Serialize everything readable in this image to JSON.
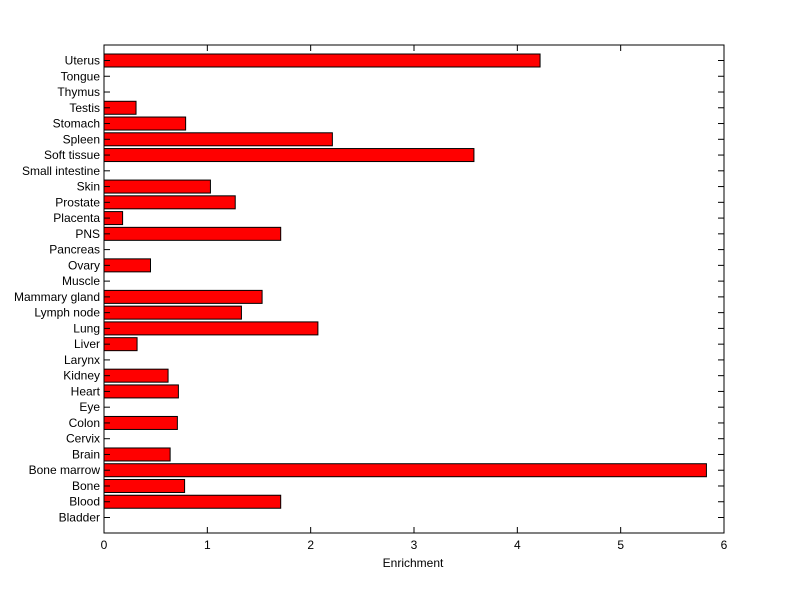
{
  "chart_data": {
    "type": "bar",
    "orientation": "horizontal",
    "xlabel": "Enrichment",
    "ylabel": "",
    "title": "",
    "xlim": [
      0,
      6
    ],
    "xticks": [
      "0",
      "1",
      "2",
      "3",
      "4",
      "5",
      "6"
    ],
    "grid": false,
    "bar_color": "#ff0000",
    "categories": [
      "Uterus",
      "Tongue",
      "Thymus",
      "Testis",
      "Stomach",
      "Spleen",
      "Soft tissue",
      "Small intestine",
      "Skin",
      "Prostate",
      "Placenta",
      "PNS",
      "Pancreas",
      "Ovary",
      "Muscle",
      "Mammary gland",
      "Lymph node",
      "Lung",
      "Liver",
      "Larynx",
      "Kidney",
      "Heart",
      "Eye",
      "Colon",
      "Cervix",
      "Brain",
      "Bone marrow",
      "Bone",
      "Blood",
      "Bladder"
    ],
    "values": [
      4.22,
      0,
      0,
      0.31,
      0.79,
      2.21,
      3.58,
      0,
      1.03,
      1.27,
      0.18,
      1.71,
      0,
      0.45,
      0,
      1.53,
      1.33,
      2.07,
      0.32,
      0,
      0.62,
      0.72,
      0,
      0.71,
      0,
      0.64,
      5.83,
      0.78,
      1.71,
      0
    ]
  }
}
